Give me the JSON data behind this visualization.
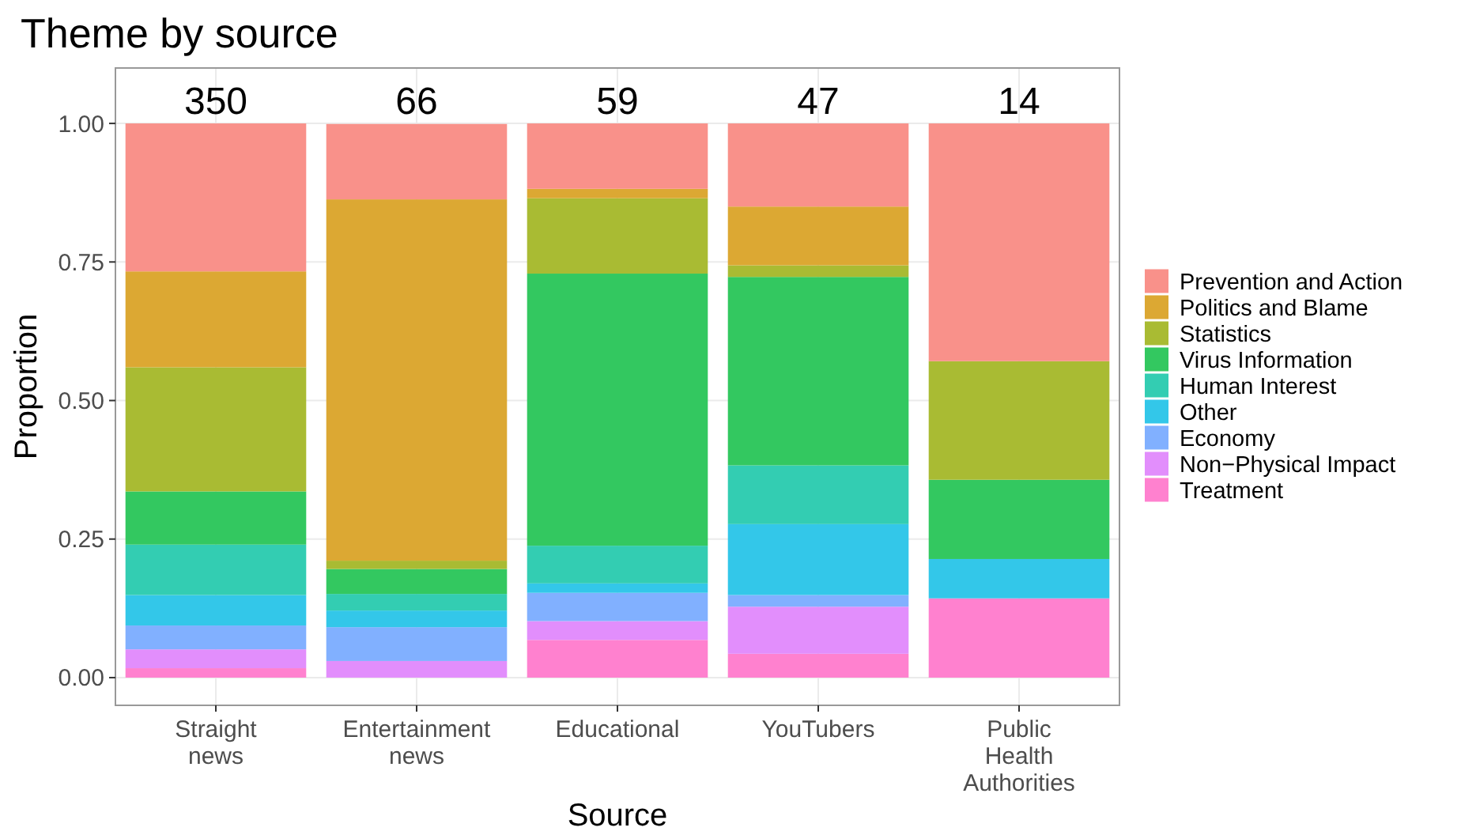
{
  "chart_data": {
    "type": "bar",
    "title": "Theme by source",
    "xlabel": "Source",
    "ylabel": "Proportion",
    "categories": [
      "Straight\nnews",
      "Entertainment\nnews",
      "Educational",
      "YouTubers",
      "Public\nHealth\nAuthorities"
    ],
    "stacked": true,
    "grid": true,
    "legend": "right",
    "ylim": [
      -0.05,
      1.1
    ],
    "yticks": [
      {
        "value": 0,
        "label": "0.00"
      },
      {
        "value": 0.25,
        "label": "0.25"
      },
      {
        "value": 0.5,
        "label": "0.50"
      },
      {
        "value": 0.75,
        "label": "0.75"
      },
      {
        "value": 1,
        "label": "1.00"
      }
    ],
    "annotations": [
      "350",
      "66",
      "59",
      "47",
      "14"
    ],
    "series": [
      {
        "name": "Treatment",
        "color": "#ff81cf",
        "values": [
          0.017,
          0,
          0.068,
          0.043,
          0.143
        ]
      },
      {
        "name": "Non−Physical Impact",
        "color": "#e28efc",
        "values": [
          0.034,
          0.03,
          0.034,
          0.085,
          0
        ]
      },
      {
        "name": "Economy",
        "color": "#81b0ff",
        "values": [
          0.043,
          0.061,
          0.051,
          0.021,
          0
        ]
      },
      {
        "name": "Other",
        "color": "#33c7e9",
        "values": [
          0.055,
          0.03,
          0.017,
          0.128,
          0.071
        ]
      },
      {
        "name": "Human Interest",
        "color": "#33cdb2",
        "values": [
          0.091,
          0.03,
          0.068,
          0.106,
          0
        ]
      },
      {
        "name": "Virus Information",
        "color": "#33c860",
        "values": [
          0.096,
          0.045,
          0.491,
          0.34,
          0.143
        ]
      },
      {
        "name": "Statistics",
        "color": "#a9bb33",
        "values": [
          0.224,
          0.015,
          0.136,
          0.021,
          0.214
        ]
      },
      {
        "name": "Politics and Blame",
        "color": "#dca833",
        "values": [
          0.173,
          0.652,
          0.017,
          0.106,
          0
        ]
      },
      {
        "name": "Prevention and Action",
        "color": "#f9918a",
        "values": [
          0.267,
          0.136,
          0.118,
          0.15,
          0.429
        ]
      }
    ]
  }
}
